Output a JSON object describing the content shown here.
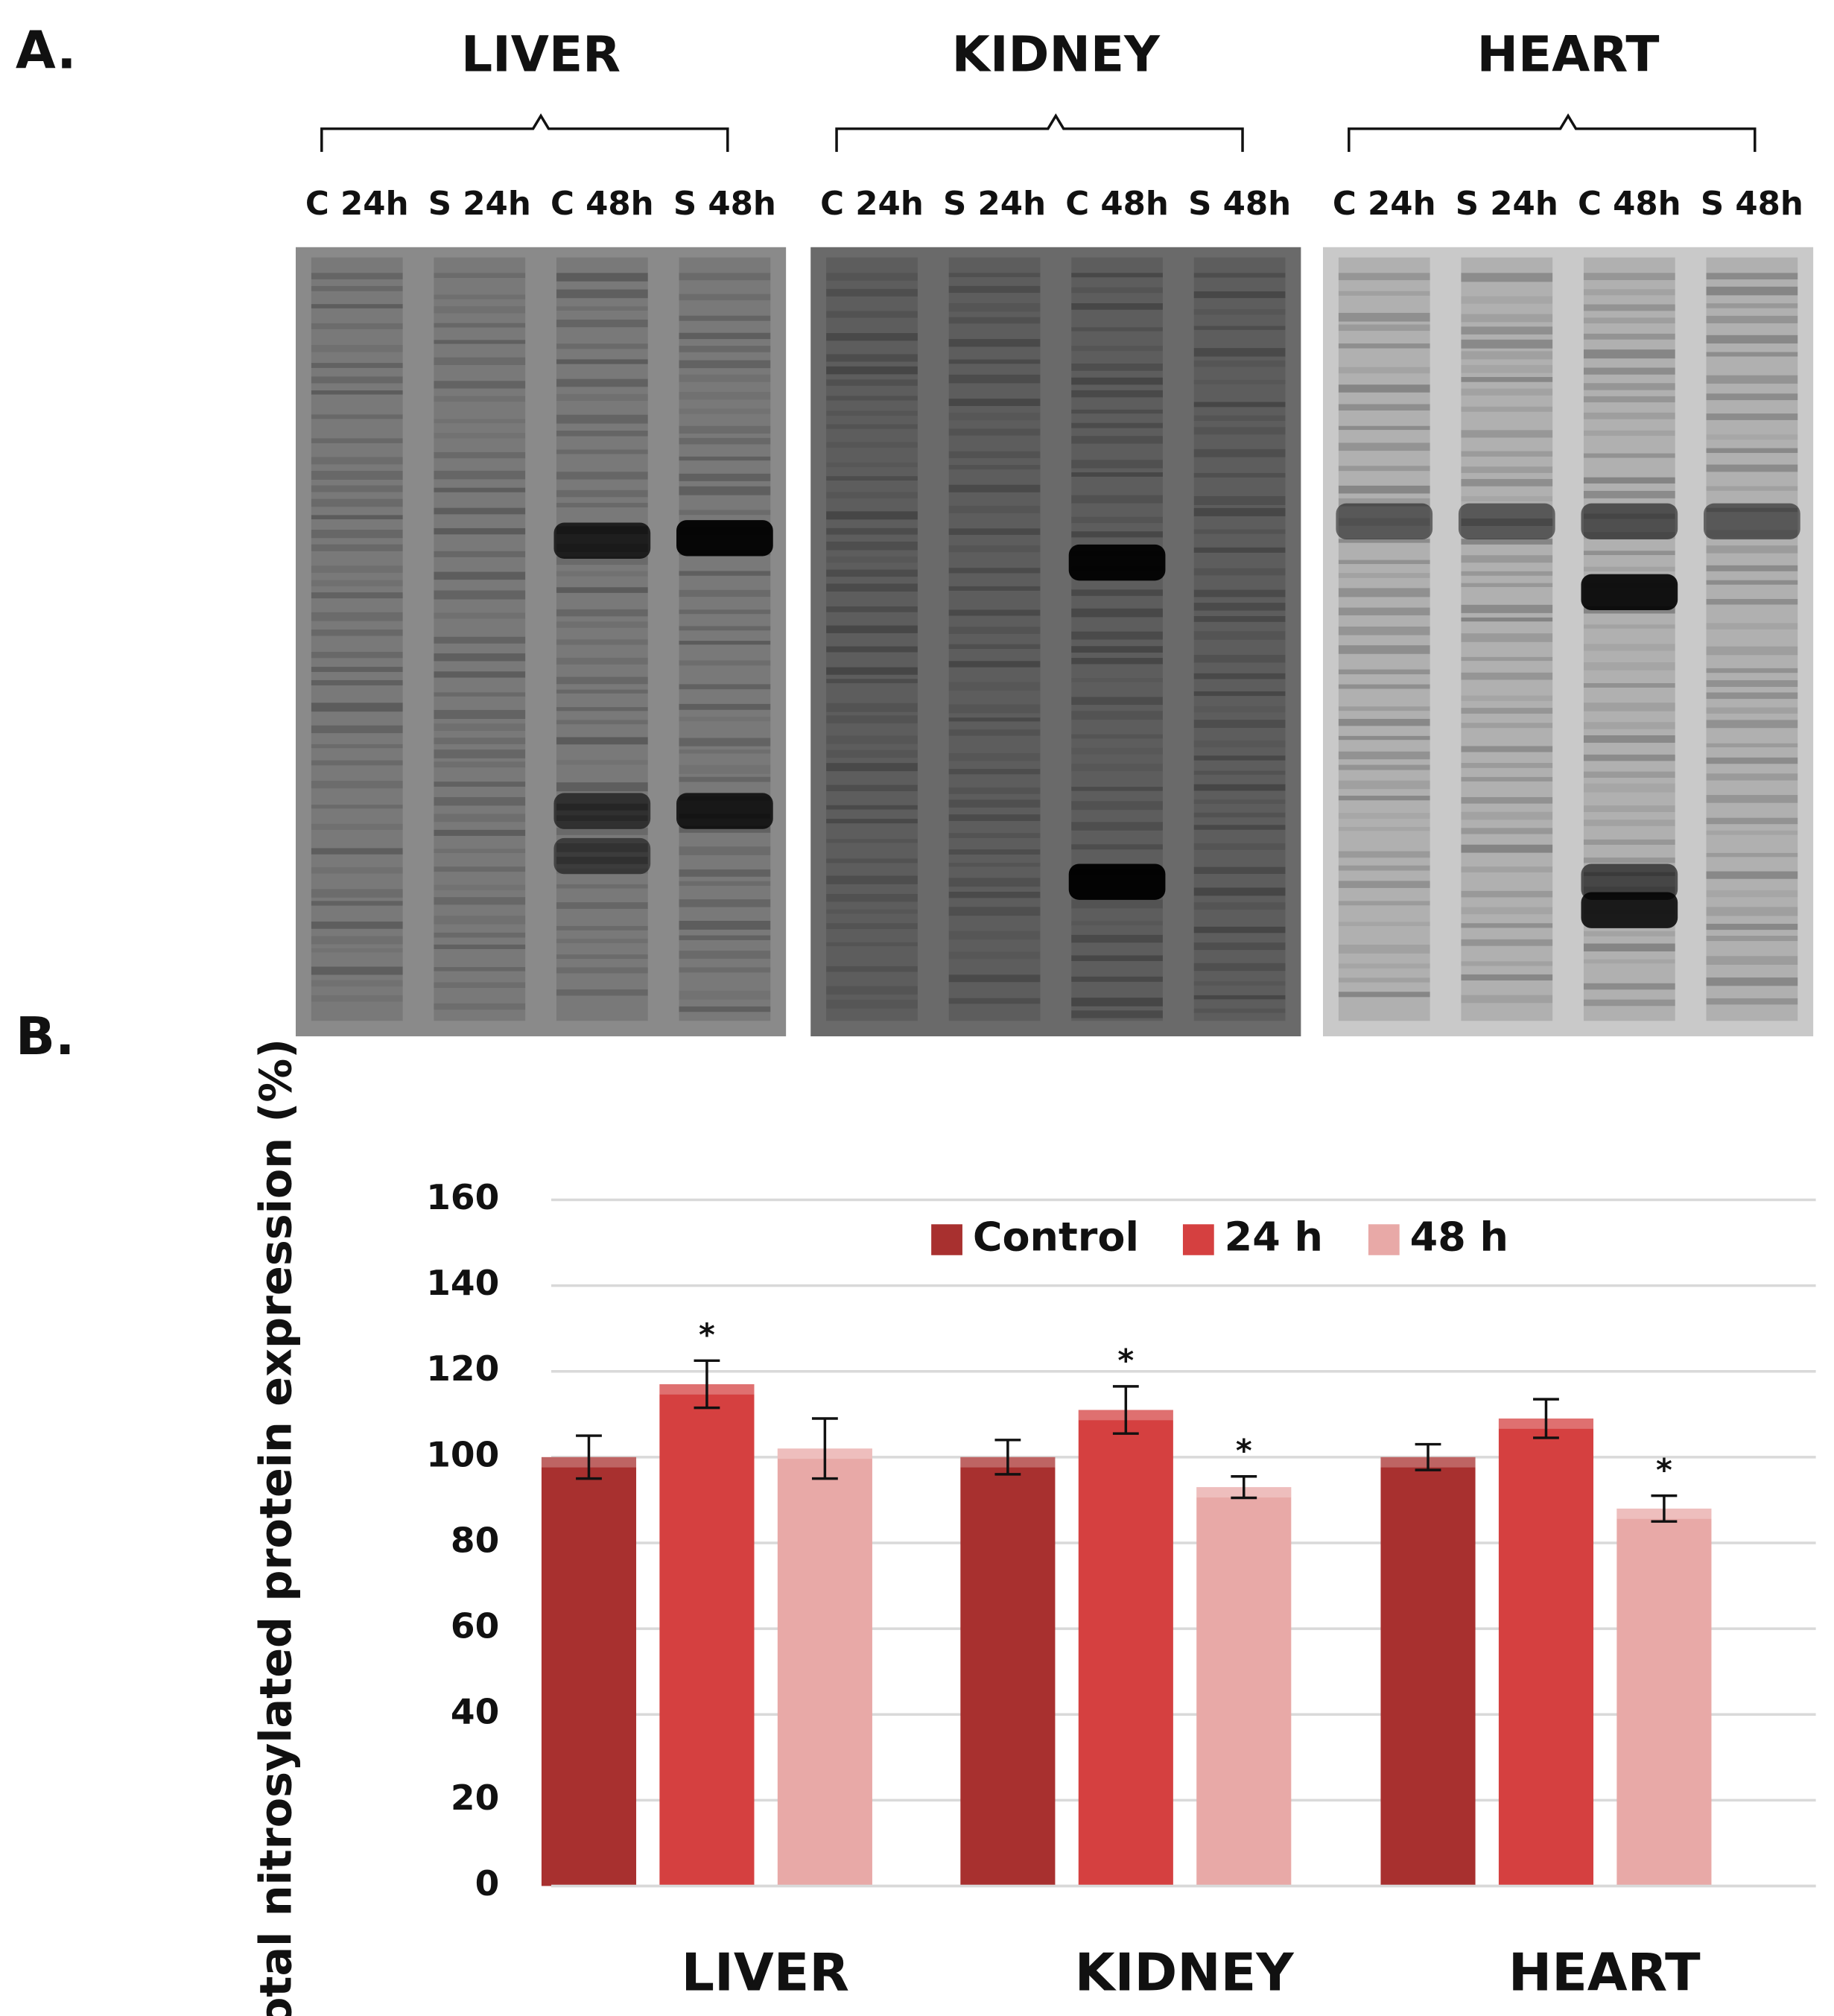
{
  "panel_a": {
    "label": "A.",
    "gels": [
      {
        "title": "LIVER",
        "lanes": [
          "C 24h",
          "S 24h",
          "C 48h",
          "S 48h"
        ]
      },
      {
        "title": "KIDNEY",
        "lanes": [
          "C 24h",
          "S 24h",
          "C 48h",
          "S 48h"
        ]
      },
      {
        "title": "HEART",
        "lanes": [
          "C 24h",
          "S 24h",
          "C 48h",
          "S 48h"
        ]
      }
    ]
  },
  "chart_data": {
    "type": "bar",
    "panel_label": "B.",
    "ylabel": "Total nitrosylated protein expression (%)",
    "categories": [
      "LIVER",
      "KIDNEY",
      "HEART"
    ],
    "series": [
      {
        "name": "Control",
        "color": "#a8302f",
        "values": [
          100,
          100,
          100
        ],
        "errors": [
          5,
          4,
          3
        ],
        "significance": [
          null,
          null,
          null
        ]
      },
      {
        "name": "24 h",
        "color": "#d54040",
        "values": [
          117,
          111,
          109
        ],
        "errors": [
          5.5,
          5.5,
          4.5
        ],
        "significance": [
          "*",
          "*",
          null
        ]
      },
      {
        "name": "48 h",
        "color": "#e8a9a7",
        "values": [
          102,
          93,
          88
        ],
        "errors": [
          7,
          2.5,
          3
        ],
        "significance": [
          null,
          "*",
          "*"
        ]
      }
    ],
    "ylim": [
      0,
      160
    ],
    "yticks": [
      0,
      20,
      40,
      60,
      80,
      100,
      120,
      140,
      160
    ],
    "grid": true,
    "legend": "top"
  }
}
